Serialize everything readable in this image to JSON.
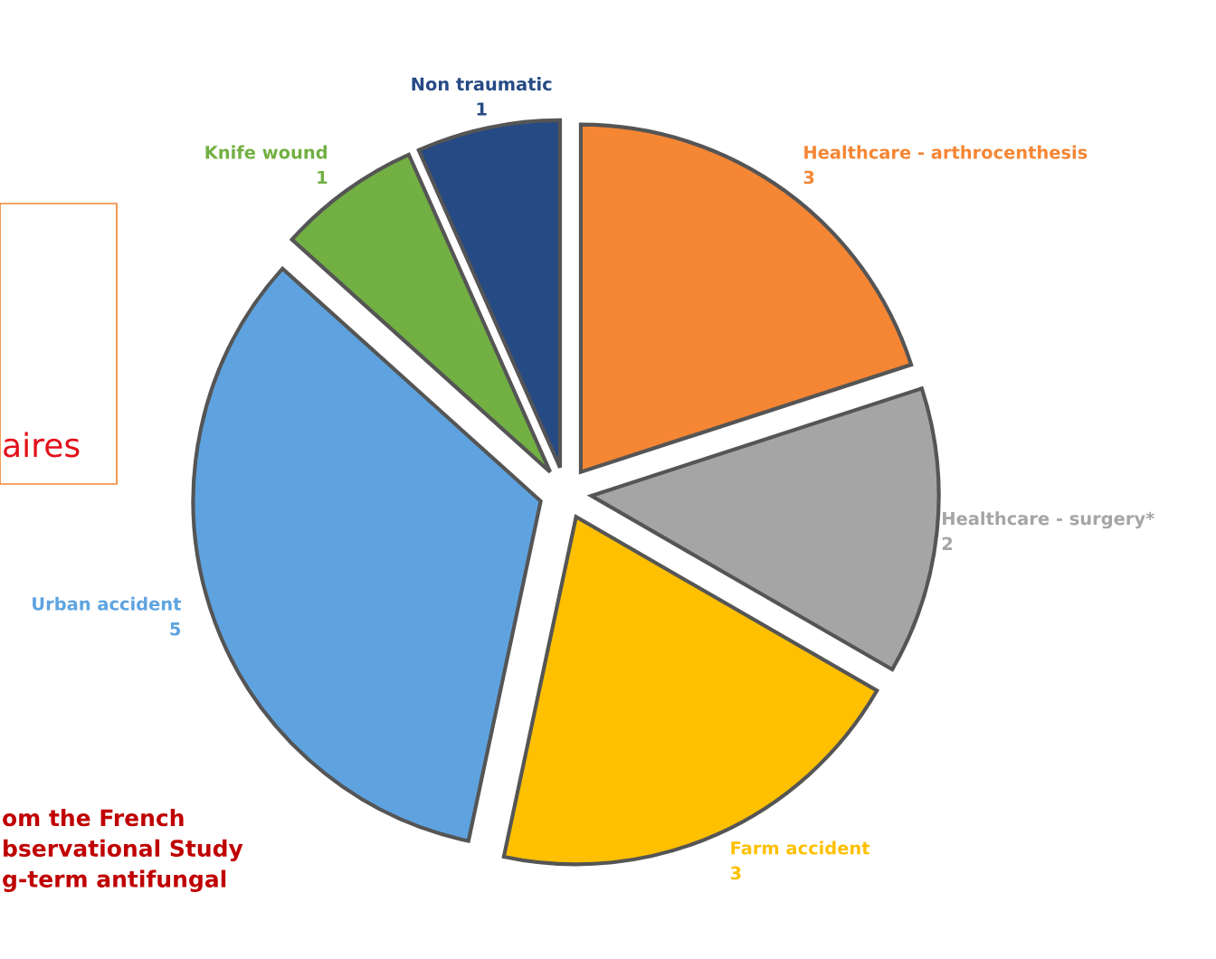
{
  "chart_data": {
    "type": "pie",
    "categories": [
      "Healthcare - arthrocenthesis",
      "Healthcare - surgery*",
      "Farm accident",
      "Urban accident",
      "Knife wound",
      "Non traumatic"
    ],
    "values": [
      3,
      2,
      3,
      5,
      1,
      1
    ],
    "colors": [
      "#f58634",
      "#a5a5a5",
      "#ffc000",
      "#5ea3e0",
      "#72b043",
      "#264a84"
    ],
    "data_labels": true,
    "legend": false,
    "annotations": [
      "aires",
      "om the French\nbservational Study\ng-term antifungal"
    ]
  }
}
